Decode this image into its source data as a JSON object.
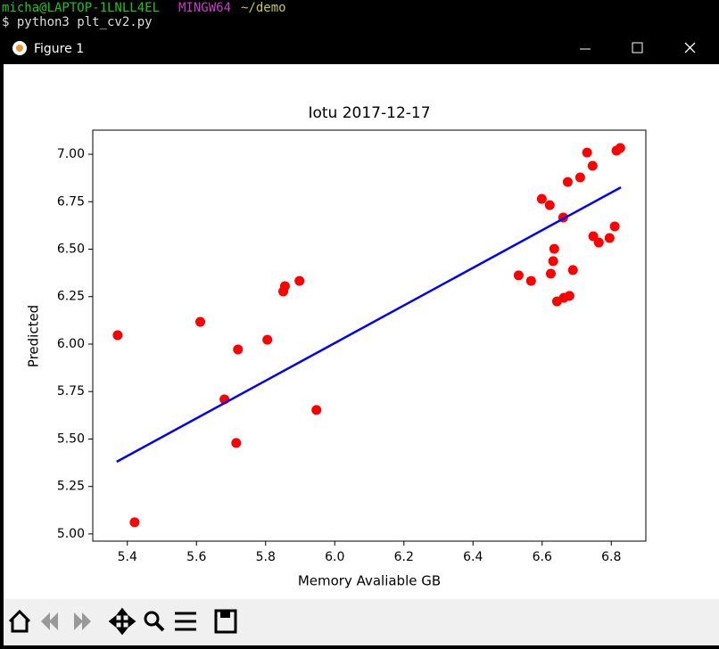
{
  "terminal": {
    "user": "micha@LAPTOP-1LNLL4EL",
    "env": "MINGW64",
    "dir": "~/demo",
    "command": "$ python3 plt_cv2.py"
  },
  "window": {
    "title": "Figure 1"
  },
  "chart_data": {
    "type": "scatter",
    "title": "Iotu 2017-12-17",
    "x_label": "Memory Avaliable GB",
    "y_label": "Predicted",
    "xlim": [
      5.3,
      6.9
    ],
    "ylim": [
      4.962,
      7.127
    ],
    "xticks": [
      5.4,
      5.6,
      5.8,
      {
        "value": 6,
        "label": "6.0"
      },
      6.2,
      6.4,
      6.6,
      6.8
    ],
    "yticks": [
      {
        "value": 5,
        "label": "5.00"
      },
      5.25,
      {
        "value": 5.5,
        "label": "5.50"
      },
      5.75,
      {
        "value": 6,
        "label": "6.00"
      },
      6.25,
      {
        "value": 6.5,
        "label": "6.50"
      },
      6.75,
      {
        "value": 7,
        "label": "7.00"
      }
    ],
    "series": [
      {
        "type": "scatter",
        "color": "#ff0000",
        "x": [
          5.372,
          5.421,
          5.611,
          5.681,
          5.715,
          5.72,
          5.805,
          5.851,
          5.856,
          5.898,
          5.947,
          6.532,
          6.568,
          6.599,
          6.622,
          6.625,
          6.632,
          6.635,
          6.643,
          6.661,
          6.663,
          6.679,
          6.674,
          6.689,
          6.71,
          6.73,
          6.746,
          6.748,
          6.764,
          6.795,
          6.81,
          6.815,
          6.826
        ],
        "values": [
          6.047,
          5.061,
          6.117,
          5.709,
          5.479,
          5.972,
          6.023,
          6.277,
          6.305,
          6.333,
          5.653,
          6.362,
          6.333,
          6.765,
          6.732,
          6.371,
          6.437,
          6.502,
          6.225,
          6.667,
          6.244,
          6.254,
          6.854,
          6.39,
          6.878,
          7.009,
          6.939,
          6.568,
          6.535,
          6.559,
          6.62,
          7.019,
          7.033
        ]
      },
      {
        "type": "line",
        "color": "#0000ff",
        "x": [
          5.369,
          6.828
        ],
        "values": [
          5.38,
          6.826
        ]
      }
    ]
  }
}
